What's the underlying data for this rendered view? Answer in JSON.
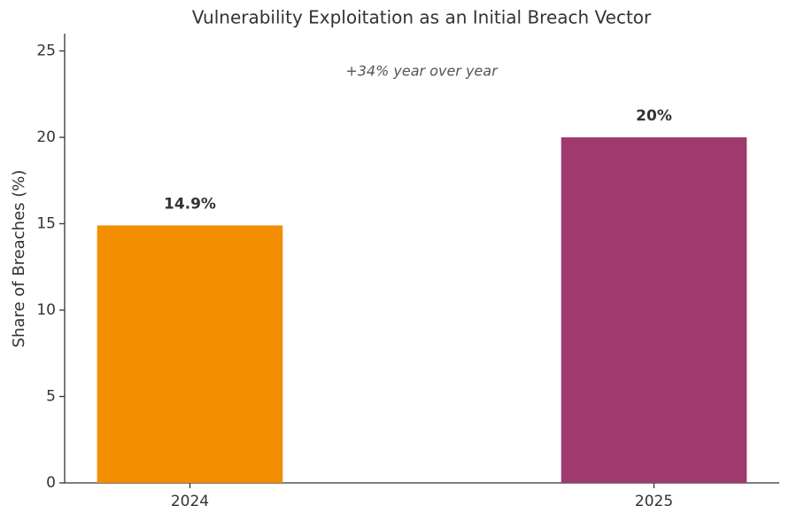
{
  "chart_data": {
    "type": "bar",
    "title": "Vulnerability Exploitation as an Initial Breach Vector",
    "annotation": "+34% year over year",
    "y_label": "Share of Breaches (%)",
    "categories": [
      "2024",
      "2025"
    ],
    "values": [
      14.9,
      20
    ],
    "value_labels": [
      "14.9%",
      "20%"
    ],
    "colors": [
      "#f28e00",
      "#9e3a6e"
    ],
    "ylim": [
      0,
      26
    ],
    "yticks": [
      0,
      5,
      10,
      15,
      20,
      25
    ],
    "grid": false
  }
}
